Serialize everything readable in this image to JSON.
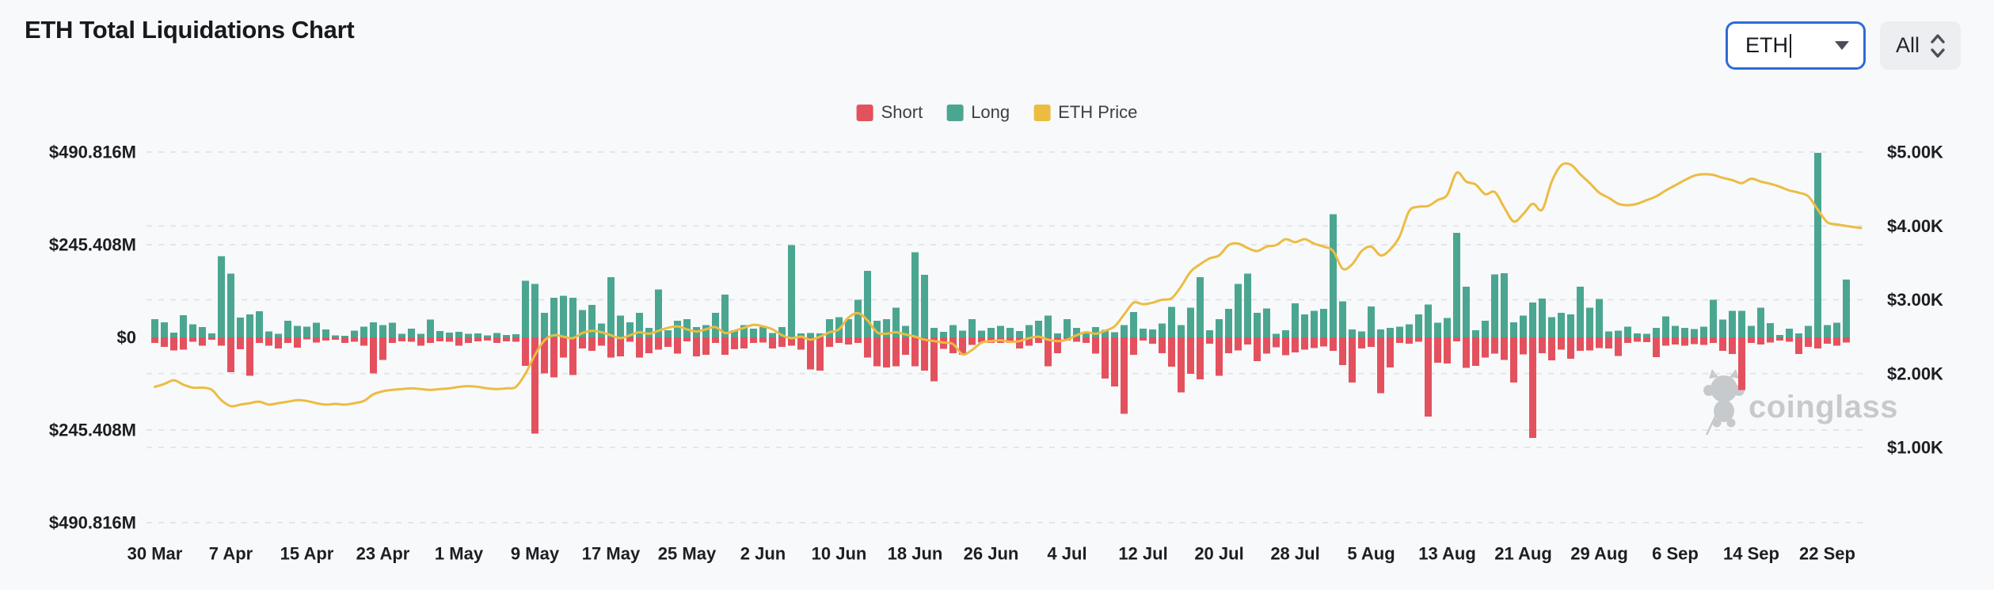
{
  "header": {
    "title": "ETH Total Liquidations Chart"
  },
  "controls": {
    "symbol_combobox": {
      "value": "ETH",
      "state": "focused"
    },
    "range_select": {
      "value": "All"
    }
  },
  "legend": {
    "items": [
      {
        "label": "Short",
        "color": "#e4515e"
      },
      {
        "label": "Long",
        "color": "#4ba691"
      },
      {
        "label": "ETH Price",
        "color": "#ecbc42"
      }
    ]
  },
  "watermark": {
    "text": "coinglass",
    "icon": "coinglass-bull-icon",
    "color": "#c7cacd"
  },
  "chart_data": {
    "type": "bar",
    "subtype": "bar+line",
    "title": "ETH Total Liquidations Chart",
    "grid": "dashed-horizontal",
    "legend_position": "top-center",
    "left_axis_labels": [
      "$490.816M",
      "$245.408M",
      "$0",
      "$245.408M",
      "$490.816M"
    ],
    "left_axis_values_musd": [
      490.816,
      245.408,
      0,
      -245.408,
      -490.816
    ],
    "right_axis_labels": [
      "$5.00K",
      "$4.00K",
      "$3.00K",
      "$2.00K",
      "$1.00K"
    ],
    "right_axis_values_kusd": [
      5,
      4,
      3,
      2,
      1
    ],
    "x_tick_labels": [
      "30 Mar",
      "7 Apr",
      "15 Apr",
      "23 Apr",
      "1 May",
      "9 May",
      "17 May",
      "25 May",
      "2 Jun",
      "10 Jun",
      "18 Jun",
      "26 Jun",
      "4 Jul",
      "12 Jul",
      "20 Jul",
      "28 Jul",
      "5 Aug",
      "13 Aug",
      "21 Aug",
      "29 Aug",
      "6 Sep",
      "14 Sep",
      "22 Sep"
    ],
    "x_tick_every_n_bars": 8,
    "series": [
      {
        "name": "Long",
        "type": "bar",
        "direction": "up",
        "unit": "$M",
        "color": "#4ba691",
        "values": [
          48,
          40,
          13,
          59,
          35,
          27,
          11,
          215,
          169,
          52,
          61,
          69,
          16,
          9,
          44,
          30,
          28,
          39,
          21,
          5,
          4,
          18,
          28,
          40,
          32,
          39,
          9,
          23,
          9,
          47,
          17,
          13,
          15,
          9,
          10,
          5,
          12,
          6,
          8,
          150,
          142,
          65,
          105,
          110,
          105,
          72,
          86,
          37,
          159,
          58,
          40,
          65,
          25,
          127,
          19,
          44,
          48,
          27,
          33,
          65,
          113,
          19,
          33,
          23,
          27,
          12,
          27,
          244,
          10,
          12,
          10,
          48,
          54,
          48,
          100,
          176,
          44,
          48,
          79,
          30,
          226,
          166,
          25,
          15,
          33,
          18,
          48,
          18,
          25,
          30,
          25,
          17,
          33,
          44,
          58,
          10,
          48,
          25,
          15,
          27,
          20,
          14,
          32,
          67,
          23,
          21,
          37,
          81,
          33,
          79,
          159,
          19,
          48,
          75,
          142,
          169,
          65,
          77,
          9,
          19,
          90,
          61,
          70,
          75,
          326,
          95,
          21,
          16,
          82,
          21,
          25,
          28,
          35,
          61,
          87,
          39,
          51,
          277,
          134,
          19,
          44,
          167,
          170,
          40,
          58,
          92,
          103,
          54,
          65,
          61,
          134,
          79,
          102,
          16,
          18,
          28,
          10,
          9,
          25,
          56,
          30,
          25,
          22,
          28,
          100,
          47,
          70,
          70,
          30,
          79,
          38,
          6,
          23,
          10,
          30,
          489,
          32,
          39,
          153
        ]
      },
      {
        "name": "Short",
        "type": "bar",
        "direction": "down",
        "unit": "$M",
        "color": "#e4515e",
        "values": [
          15,
          25,
          35,
          33,
          12,
          22,
          6,
          22,
          92,
          31,
          102,
          15,
          22,
          29,
          15,
          27,
          5,
          14,
          8,
          6,
          15,
          12,
          22,
          95,
          60,
          15,
          10,
          12,
          22,
          15,
          10,
          12,
          22,
          15,
          10,
          8,
          15,
          10,
          12,
          75,
          255,
          95,
          106,
          54,
          100,
          29,
          36,
          22,
          54,
          50,
          12,
          54,
          42,
          33,
          25,
          43,
          10,
          50,
          46,
          15,
          46,
          31,
          29,
          15,
          14,
          29,
          25,
          22,
          33,
          85,
          88,
          25,
          15,
          19,
          15,
          54,
          77,
          80,
          77,
          46,
          77,
          88,
          116,
          30,
          42,
          46,
          20,
          14,
          15,
          15,
          15,
          29,
          22,
          15,
          77,
          42,
          8,
          12,
          15,
          43,
          109,
          130,
          202,
          46,
          8,
          17,
          42,
          78,
          146,
          97,
          111,
          17,
          102,
          42,
          35,
          19,
          63,
          43,
          26,
          47,
          40,
          33,
          28,
          24,
          36,
          73,
          120,
          29,
          25,
          148,
          80,
          15,
          17,
          12,
          210,
          67,
          69,
          10,
          81,
          75,
          54,
          43,
          60,
          120,
          45,
          266,
          42,
          61,
          33,
          57,
          36,
          35,
          28,
          29,
          49,
          15,
          12,
          13,
          52,
          22,
          19,
          22,
          18,
          20,
          15,
          36,
          44,
          140,
          15,
          19,
          14,
          8,
          12,
          44,
          25,
          29,
          17,
          22,
          14
        ]
      },
      {
        "name": "ETH Price",
        "type": "line",
        "axis": "right",
        "unit": "$K",
        "color": "#ecbc42",
        "values": [
          1.82,
          1.86,
          1.91,
          1.85,
          1.81,
          1.81,
          1.78,
          1.64,
          1.56,
          1.58,
          1.6,
          1.62,
          1.58,
          1.6,
          1.62,
          1.64,
          1.63,
          1.6,
          1.58,
          1.59,
          1.58,
          1.6,
          1.63,
          1.72,
          1.76,
          1.78,
          1.79,
          1.8,
          1.79,
          1.78,
          1.79,
          1.8,
          1.82,
          1.83,
          1.82,
          1.8,
          1.79,
          1.8,
          1.82,
          2.0,
          2.25,
          2.45,
          2.52,
          2.5,
          2.48,
          2.55,
          2.58,
          2.56,
          2.52,
          2.48,
          2.52,
          2.56,
          2.54,
          2.58,
          2.62,
          2.64,
          2.6,
          2.57,
          2.6,
          2.63,
          2.55,
          2.58,
          2.62,
          2.66,
          2.64,
          2.6,
          2.52,
          2.48,
          2.5,
          2.46,
          2.5,
          2.56,
          2.6,
          2.76,
          2.82,
          2.72,
          2.56,
          2.54,
          2.56,
          2.53,
          2.5,
          2.46,
          2.44,
          2.42,
          2.4,
          2.26,
          2.32,
          2.42,
          2.44,
          2.45,
          2.43,
          2.44,
          2.48,
          2.5,
          2.46,
          2.44,
          2.46,
          2.52,
          2.56,
          2.54,
          2.58,
          2.64,
          2.8,
          2.96,
          2.94,
          2.96,
          3.0,
          3.02,
          3.18,
          3.38,
          3.48,
          3.56,
          3.6,
          3.74,
          3.76,
          3.7,
          3.66,
          3.72,
          3.74,
          3.82,
          3.78,
          3.82,
          3.76,
          3.72,
          3.66,
          3.42,
          3.48,
          3.66,
          3.72,
          3.6,
          3.68,
          3.86,
          4.2,
          4.26,
          4.27,
          4.35,
          4.42,
          4.72,
          4.6,
          4.56,
          4.43,
          4.46,
          4.25,
          4.06,
          4.16,
          4.3,
          4.22,
          4.6,
          4.82,
          4.83,
          4.7,
          4.58,
          4.45,
          4.38,
          4.3,
          4.28,
          4.3,
          4.35,
          4.4,
          4.48,
          4.55,
          4.62,
          4.68,
          4.7,
          4.69,
          4.65,
          4.62,
          4.58,
          4.64,
          4.6,
          4.57,
          4.53,
          4.48,
          4.45,
          4.4,
          4.22,
          4.05,
          4.02,
          4.0
        ]
      }
    ],
    "left_axis_range_musd": [
      -490.816,
      490.816
    ],
    "right_axis_range_kusd_labeled": [
      1,
      5
    ]
  }
}
